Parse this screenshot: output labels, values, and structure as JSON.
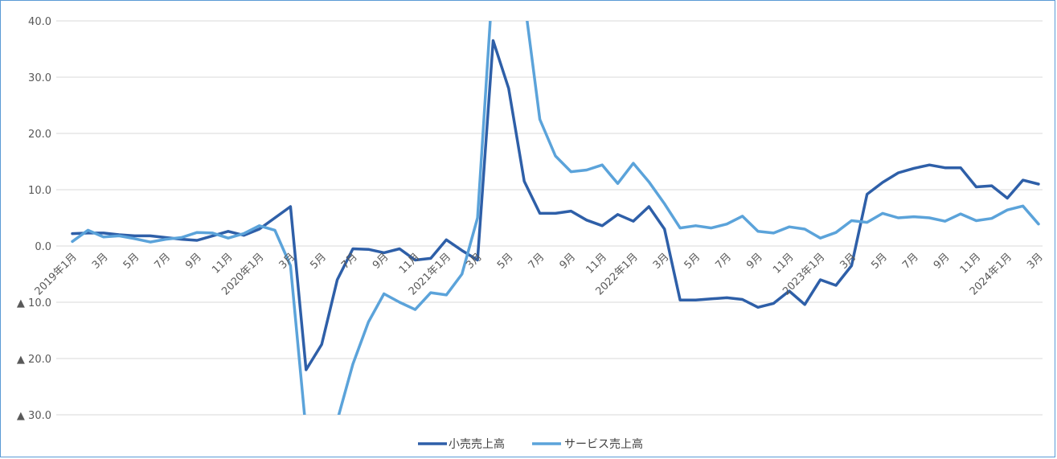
{
  "chart_data": {
    "type": "line",
    "title": "",
    "xlabel": "",
    "ylabel": "",
    "ylim": [
      -30,
      40
    ],
    "yticks": [
      {
        "value": 40,
        "label": "40.0"
      },
      {
        "value": 30,
        "label": "30.0"
      },
      {
        "value": 20,
        "label": "20.0"
      },
      {
        "value": 10,
        "label": "10.0"
      },
      {
        "value": 0,
        "label": "0.0"
      },
      {
        "value": -10,
        "label": "▲ 10.0"
      },
      {
        "value": -20,
        "label": "▲ 20.0"
      },
      {
        "value": -30,
        "label": "▲ 30.0"
      }
    ],
    "x_labels": [
      {
        "index": 0,
        "label": "2019年1月"
      },
      {
        "index": 2,
        "label": "3月"
      },
      {
        "index": 4,
        "label": "5月"
      },
      {
        "index": 6,
        "label": "7月"
      },
      {
        "index": 8,
        "label": "9月"
      },
      {
        "index": 10,
        "label": "11月"
      },
      {
        "index": 12,
        "label": "2020年1月"
      },
      {
        "index": 14,
        "label": "3月"
      },
      {
        "index": 16,
        "label": "5月"
      },
      {
        "index": 18,
        "label": "7月"
      },
      {
        "index": 20,
        "label": "9月"
      },
      {
        "index": 22,
        "label": "11月"
      },
      {
        "index": 24,
        "label": "2021年1月"
      },
      {
        "index": 26,
        "label": "3月"
      },
      {
        "index": 28,
        "label": "5月"
      },
      {
        "index": 30,
        "label": "7月"
      },
      {
        "index": 32,
        "label": "9月"
      },
      {
        "index": 34,
        "label": "11月"
      },
      {
        "index": 36,
        "label": "2022年1月"
      },
      {
        "index": 38,
        "label": "3月"
      },
      {
        "index": 40,
        "label": "5月"
      },
      {
        "index": 42,
        "label": "7月"
      },
      {
        "index": 44,
        "label": "9月"
      },
      {
        "index": 46,
        "label": "11月"
      },
      {
        "index": 48,
        "label": "2023年1月"
      },
      {
        "index": 50,
        "label": "3月"
      },
      {
        "index": 52,
        "label": "5月"
      },
      {
        "index": 54,
        "label": "7月"
      },
      {
        "index": 56,
        "label": "9月"
      },
      {
        "index": 58,
        "label": "11月"
      },
      {
        "index": 60,
        "label": "2024年1月"
      },
      {
        "index": 62,
        "label": "3月"
      }
    ],
    "series": [
      {
        "name": "小売売上高",
        "color": "#2e5fa8",
        "values": [
          2.2,
          2.3,
          2.3,
          2.0,
          1.8,
          1.8,
          1.5,
          1.2,
          1.0,
          1.8,
          2.6,
          1.9,
          3.0,
          5.0,
          7.0,
          -22.0,
          -17.5,
          -6.0,
          -0.5,
          -0.6,
          -1.2,
          -0.5,
          -2.5,
          -2.2,
          1.1,
          -0.8,
          -2.5,
          36.5,
          28.0,
          11.5,
          5.8,
          5.8,
          6.2,
          4.6,
          3.6,
          5.6,
          4.4,
          7.0,
          3.0,
          -9.6,
          -9.6,
          -9.4,
          -9.2,
          -9.5,
          -10.9,
          -10.2,
          -8.0,
          -10.4,
          -6.0,
          -7.0,
          -3.5,
          9.2,
          11.3,
          13.0,
          13.8,
          14.4,
          13.9,
          13.9,
          10.5,
          10.7,
          8.5,
          11.7,
          11.0
        ]
      },
      {
        "name": "サービス売上高",
        "color": "#5ba3da",
        "values": [
          0.8,
          2.8,
          1.6,
          1.8,
          1.3,
          0.7,
          1.2,
          1.5,
          2.4,
          2.3,
          1.4,
          2.2,
          3.6,
          2.8,
          -3.5,
          -33.0,
          -40.0,
          -31.0,
          -21.0,
          -13.5,
          -8.5,
          -10.0,
          -11.3,
          -8.3,
          -8.7,
          -5.0,
          5.0,
          48.0,
          60.0,
          44.0,
          22.5,
          16.0,
          13.2,
          13.5,
          14.4,
          11.1,
          14.7,
          11.4,
          7.5,
          3.2,
          3.6,
          3.2,
          3.9,
          5.3,
          2.6,
          2.3,
          3.4,
          3.0,
          1.4,
          2.4,
          4.5,
          4.2,
          5.8,
          5.0,
          5.2,
          5.0,
          4.4,
          5.7,
          4.5,
          4.9,
          6.4,
          7.1,
          3.9
        ]
      }
    ],
    "legend_position": "bottom",
    "grid": true
  }
}
